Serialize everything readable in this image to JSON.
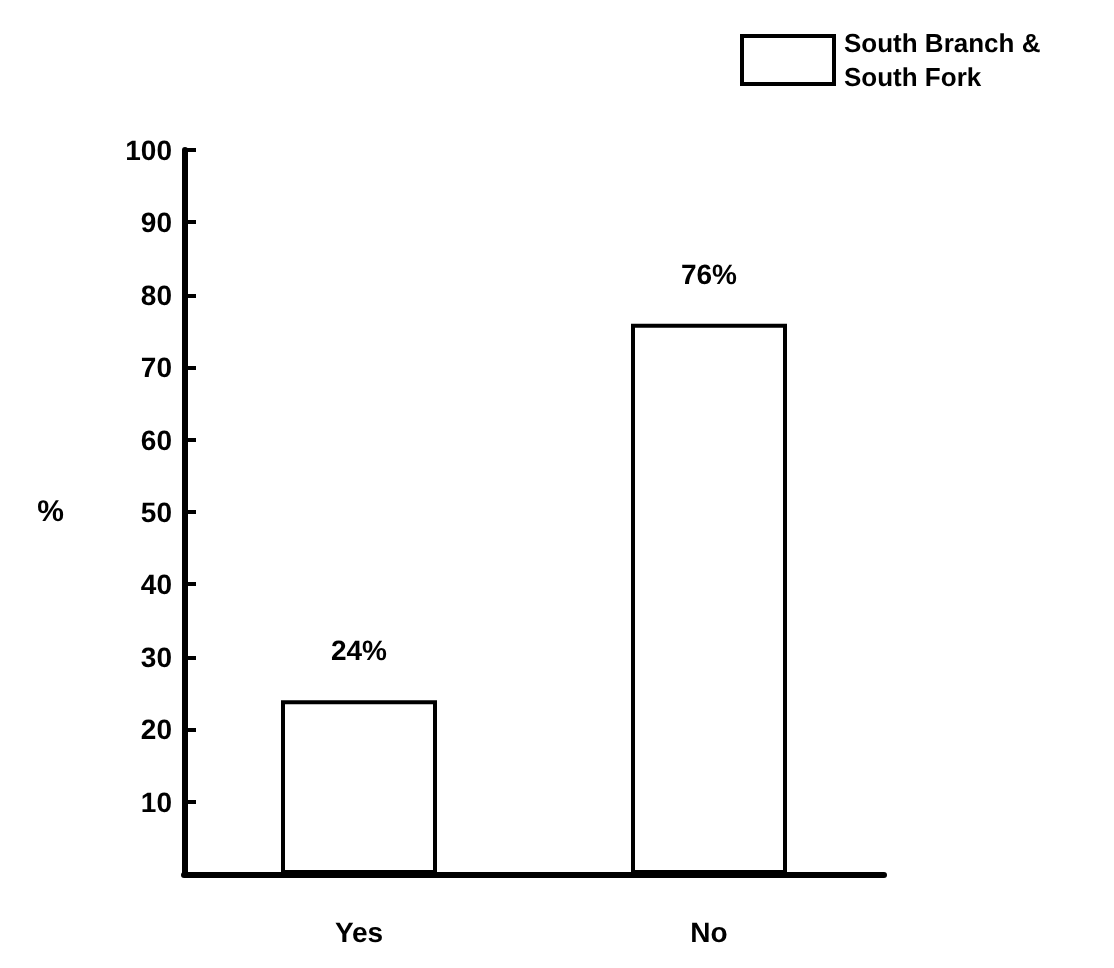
{
  "chart_data": {
    "type": "bar",
    "ylabel": "%",
    "categories": [
      "Yes",
      "No"
    ],
    "series": [
      {
        "name": "South Branch & South Fork",
        "color": "#ffffff",
        "values": [
          24,
          76
        ],
        "value_labels": [
          "24%",
          "76%"
        ]
      }
    ],
    "ylim": [
      0,
      100
    ],
    "yticks": [
      10,
      20,
      30,
      40,
      50,
      60,
      70,
      80,
      90,
      100
    ],
    "grid": false,
    "legend": "top right"
  }
}
